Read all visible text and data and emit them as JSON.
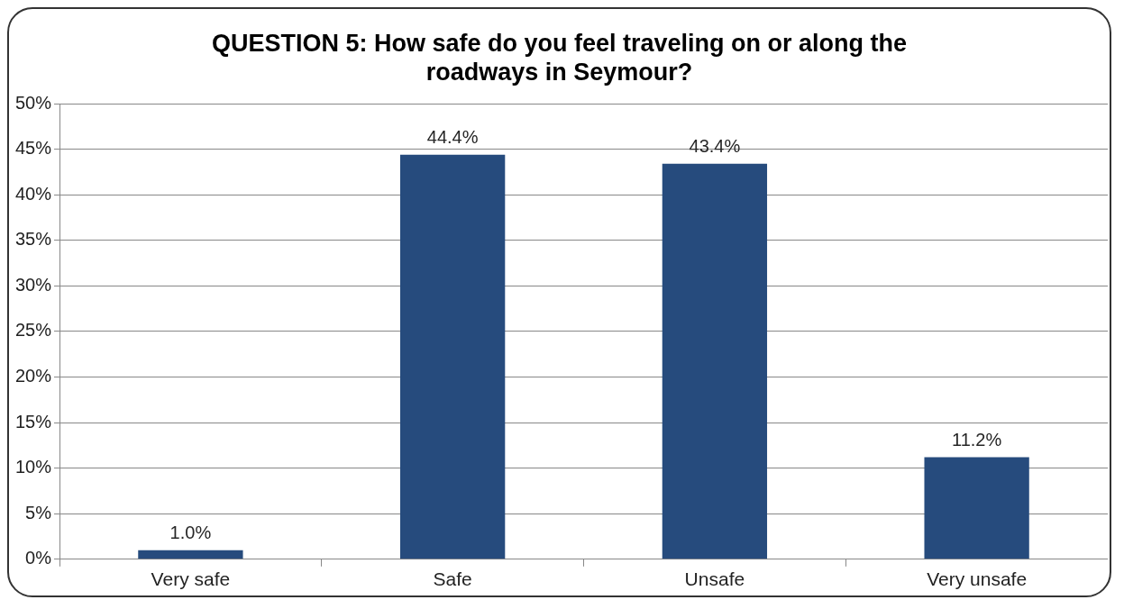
{
  "chart_data": {
    "type": "bar",
    "title": "QUESTION 5: How safe do you feel traveling on or along the roadways in Seymour?",
    "categories": [
      "Very safe",
      "Safe",
      "Unsafe",
      "Very unsafe"
    ],
    "values": [
      1.0,
      44.4,
      43.4,
      11.2
    ],
    "value_labels": [
      "1.0%",
      "44.4%",
      "43.4%",
      "11.2%"
    ],
    "color": "#264b7d",
    "ylim": [
      0,
      50
    ],
    "yticks": [
      {
        "value": 0,
        "label": "0%"
      },
      {
        "value": 5,
        "label": "5%"
      },
      {
        "value": 10,
        "label": "10%"
      },
      {
        "value": 15,
        "label": "15%"
      },
      {
        "value": 20,
        "label": "20%"
      },
      {
        "value": 25,
        "label": "25%"
      },
      {
        "value": 30,
        "label": "30%"
      },
      {
        "value": 35,
        "label": "35%"
      },
      {
        "value": 40,
        "label": "40%"
      },
      {
        "value": 45,
        "label": "45%"
      },
      {
        "value": 50,
        "label": "50%"
      }
    ],
    "grid": "y"
  }
}
